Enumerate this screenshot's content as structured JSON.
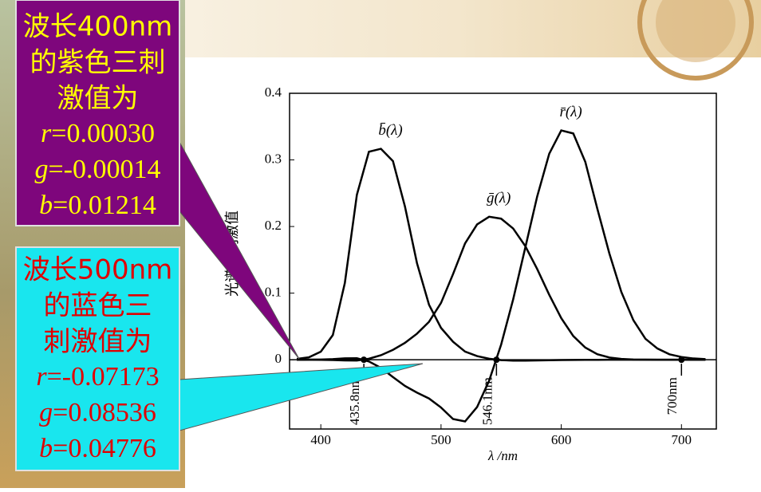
{
  "chart_data": {
    "type": "line",
    "y_label": "光谱三刺激值",
    "x_label": "λ /nm",
    "x": [
      380,
      390,
      400,
      410,
      420,
      430,
      440,
      450,
      460,
      470,
      480,
      490,
      500,
      510,
      520,
      530,
      540,
      550,
      560,
      570,
      580,
      590,
      600,
      610,
      620,
      630,
      640,
      650,
      660,
      670,
      680,
      690,
      700,
      710,
      720
    ],
    "series": [
      {
        "name": "b̄(λ)",
        "color": "#000000",
        "values": [
          0.00117,
          0.00359,
          0.01214,
          0.03707,
          0.11541,
          0.24769,
          0.31228,
          0.3167,
          0.29821,
          0.22991,
          0.14494,
          0.08257,
          0.04776,
          0.02698,
          0.01221,
          0.00549,
          0.00146,
          -0.00058,
          -0.0013,
          -0.00135,
          -0.00108,
          -0.00079,
          -0.00049,
          -0.0003,
          -0.00015,
          -8e-05,
          -3e-05,
          -1e-05,
          0,
          0,
          0,
          0,
          0,
          0,
          0
        ]
      },
      {
        "name": "ḡ(λ)",
        "color": "#000000",
        "values": [
          -1e-05,
          -4e-05,
          -0.00014,
          -0.00041,
          -0.0011,
          -0.00119,
          0.00149,
          0.00678,
          0.01485,
          0.02538,
          0.03914,
          0.05689,
          0.08536,
          0.1286,
          0.17468,
          0.20317,
          0.21466,
          0.21178,
          0.19702,
          0.17087,
          0.1361,
          0.09754,
          0.06246,
          0.03557,
          0.01828,
          0.00833,
          0.00334,
          0.00116,
          0.00037,
          0.00011,
          3e-05,
          0,
          0,
          0,
          0
        ]
      },
      {
        "name": "r̄(λ)",
        "color": "#000000",
        "values": [
          3e-05,
          0.0001,
          0.0003,
          0.00084,
          0.00211,
          0.00218,
          -0.00261,
          -0.01213,
          -0.02608,
          -0.03933,
          -0.04939,
          -0.05814,
          -0.07173,
          -0.08901,
          -0.09264,
          -0.07101,
          -0.03152,
          0.02279,
          0.0906,
          0.16768,
          0.24526,
          0.30928,
          0.34429,
          0.33971,
          0.29708,
          0.22677,
          0.15968,
          0.10167,
          0.05932,
          0.03149,
          0.01687,
          0.00819,
          0.0041,
          0.00188,
          0.00086
        ]
      }
    ],
    "xlim": [
      374,
      729
    ],
    "xticks": [
      400,
      500,
      600,
      700
    ],
    "ylim": [
      -0.104,
      0.4
    ],
    "yticks": [
      0,
      0.1,
      0.2,
      0.3,
      0.4
    ],
    "annotations": [
      {
        "text": "435.8nm",
        "x": 435.8
      },
      {
        "text": "546.1nm",
        "x": 546.1
      },
      {
        "text": "700nm",
        "x": 700
      }
    ]
  },
  "callouts": [
    {
      "lines": [
        "波长400nm",
        "的紫色三刺",
        "激值为"
      ],
      "values": [
        {
          "symbol": "r",
          "text": "=0.00030"
        },
        {
          "symbol": "g",
          "text": "=-0.00014"
        },
        {
          "symbol": "b",
          "text": "=0.01214"
        }
      ]
    },
    {
      "lines": [
        "波长500nm",
        "的蓝色三",
        "刺激值为"
      ],
      "values": [
        {
          "symbol": "r",
          "text": "=-0.07173"
        },
        {
          "symbol": "g",
          "text": "=0.08536"
        },
        {
          "symbol": "b",
          "text": "=0.04776"
        }
      ]
    }
  ]
}
